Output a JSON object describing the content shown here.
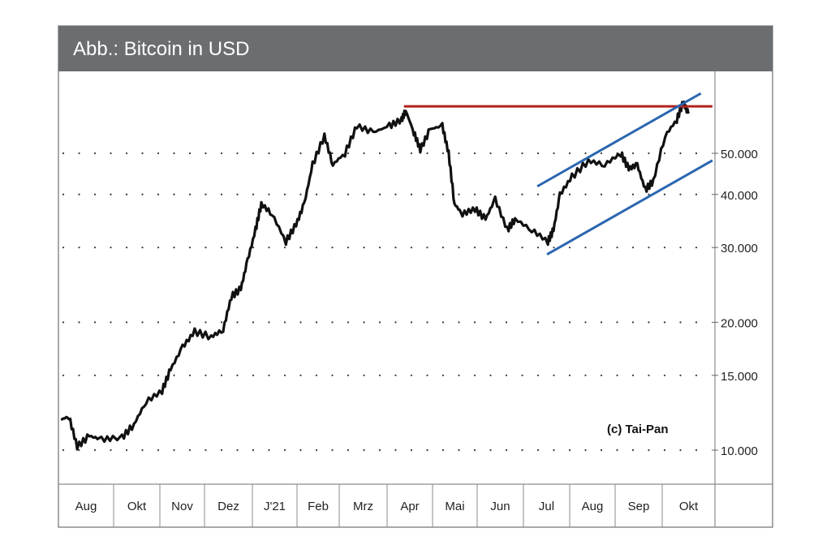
{
  "chart_data": {
    "type": "line",
    "title": "Abb.: Bitcoin in USD",
    "xlabel": "",
    "ylabel": "",
    "yscale": "log",
    "ylim": [
      8500,
      85000
    ],
    "grid": "dotted horizontal",
    "x_month_labels": [
      "Aug",
      "Okt",
      "Nov",
      "Dez",
      "J'21",
      "Feb",
      "Mrz",
      "Apr",
      "Mai",
      "Jun",
      "Jul",
      "Aug",
      "Sep",
      "Okt"
    ],
    "x_month_index": [
      0,
      2,
      3,
      4,
      5,
      6,
      7,
      8,
      9,
      10,
      11,
      12,
      13,
      14
    ],
    "y_ticks": [
      {
        "value": 10000,
        "label": "10.000"
      },
      {
        "value": 15000,
        "label": "15.000"
      },
      {
        "value": 20000,
        "label": "20.000"
      },
      {
        "value": 30000,
        "label": "30.000"
      },
      {
        "value": 40000,
        "label": "40.000"
      },
      {
        "value": 50000,
        "label": "50.000"
      }
    ],
    "series": [
      {
        "name": "Bitcoin",
        "color": "#111111",
        "x": [
          0.09,
          0.38,
          0.68,
          1.12,
          1.56,
          2.18,
          2.44,
          2.7,
          3.05,
          3.24,
          3.51,
          3.78,
          4.14,
          4.39,
          4.56,
          4.76,
          4.9,
          5.07,
          5.2,
          5.44,
          5.75,
          5.98,
          6.17,
          6.37,
          6.65,
          6.85,
          7.12,
          7.37,
          7.71,
          8.05,
          8.32,
          8.41,
          8.59,
          8.73,
          8.95,
          9.22,
          9.36,
          9.49,
          9.67,
          9.95,
          10.18,
          10.39,
          10.65,
          10.82,
          11.18,
          11.53,
          11.65,
          11.79,
          12.05,
          12.41,
          12.77,
          13.12,
          13.29,
          13.47,
          13.64,
          13.81,
          14.06,
          14.29,
          14.42,
          14.52
        ],
        "values": [
          11800,
          12000,
          10200,
          10800,
          10600,
          10700,
          11500,
          13000,
          13800,
          15500,
          17500,
          19000,
          18500,
          19200,
          23000,
          24000,
          28000,
          33000,
          38000,
          36000,
          31000,
          34000,
          38000,
          47000,
          55000,
          47000,
          50000,
          58000,
          56000,
          58000,
          60000,
          63000,
          56000,
          51000,
          57000,
          58000,
          50000,
          38000,
          36000,
          37000,
          35000,
          39000,
          33000,
          35000,
          33000,
          31000,
          33000,
          40000,
          44000,
          48000,
          47000,
          50000,
          46000,
          47000,
          41000,
          43000,
          55000,
          60000,
          66000,
          62000
        ]
      }
    ],
    "annotations": [
      {
        "type": "hline",
        "name": "resistance",
        "color": "#b0231c",
        "value": 64500,
        "x_from": 8.37,
        "x_to": 15.0
      },
      {
        "type": "trendline",
        "name": "channel-upper",
        "color": "#2a66b0",
        "from": [
          11.3,
          41800
        ],
        "to": [
          14.77,
          69200
        ]
      },
      {
        "type": "trendline",
        "name": "channel-lower",
        "color": "#2a66b0",
        "from": [
          11.51,
          28900
        ],
        "to": [
          15.0,
          48100
        ]
      }
    ],
    "copyright": "(c) Tai-Pan"
  }
}
